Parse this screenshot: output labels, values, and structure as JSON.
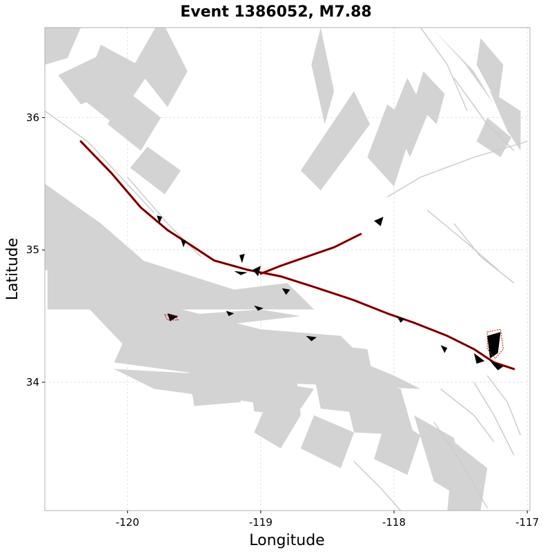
{
  "title": "Event 1386052, M7.88",
  "colors": {
    "fault_patch": "#d3d3d3",
    "fault_trace": "#cccccc",
    "rupture_outer": "#cc0000",
    "rupture_inner": "#000000",
    "slip": "#000000",
    "grid": "#d9d9d9"
  },
  "chart_data": {
    "type": "map",
    "title": "Event 1386052, M7.88",
    "xlabel": "Longitude",
    "ylabel": "Latitude",
    "xlim": [
      -120.62,
      -116.98
    ],
    "ylim": [
      33.03,
      36.68
    ],
    "x_ticks": [
      -120,
      -119,
      -118,
      -117
    ],
    "x_tick_labels": [
      "-120",
      "-119",
      "-118",
      "-117"
    ],
    "y_ticks": [
      34,
      35,
      36
    ],
    "y_tick_labels": [
      "34",
      "35",
      "36"
    ],
    "grid": true,
    "fault_patches": [
      [
        [
          -120.62,
          36.68
        ],
        [
          -120.35,
          36.68
        ],
        [
          -120.45,
          36.45
        ],
        [
          -120.62,
          36.4
        ]
      ],
      [
        [
          -120.52,
          36.32
        ],
        [
          -120.15,
          36.5
        ],
        [
          -119.98,
          36.25
        ],
        [
          -120.35,
          36.1
        ]
      ],
      [
        [
          -120.2,
          36.55
        ],
        [
          -119.83,
          36.35
        ],
        [
          -120.1,
          35.95
        ],
        [
          -120.35,
          36.15
        ]
      ],
      [
        [
          -120.0,
          36.2
        ],
        [
          -119.75,
          36.0
        ],
        [
          -119.9,
          35.75
        ],
        [
          -120.15,
          35.95
        ]
      ],
      [
        [
          -119.85,
          35.78
        ],
        [
          -119.6,
          35.6
        ],
        [
          -119.72,
          35.42
        ],
        [
          -119.98,
          35.62
        ]
      ],
      [
        [
          -119.75,
          36.75
        ],
        [
          -119.55,
          36.35
        ],
        [
          -119.7,
          36.08
        ],
        [
          -119.95,
          36.4
        ]
      ],
      [
        [
          -118.55,
          36.68
        ],
        [
          -118.45,
          36.2
        ],
        [
          -118.52,
          35.95
        ],
        [
          -118.62,
          36.4
        ]
      ],
      [
        [
          -118.3,
          36.2
        ],
        [
          -118.18,
          35.95
        ],
        [
          -118.55,
          35.45
        ],
        [
          -118.7,
          35.6
        ]
      ],
      [
        [
          -118.05,
          36.1
        ],
        [
          -117.85,
          35.95
        ],
        [
          -118.0,
          35.48
        ],
        [
          -118.2,
          35.7
        ]
      ],
      [
        [
          -117.9,
          36.3
        ],
        [
          -117.75,
          36.02
        ],
        [
          -117.88,
          35.7
        ],
        [
          -118.02,
          36.0
        ]
      ],
      [
        [
          -117.78,
          36.35
        ],
        [
          -117.62,
          36.18
        ],
        [
          -117.68,
          35.95
        ],
        [
          -117.85,
          36.12
        ]
      ],
      [
        [
          -117.72,
          36.68
        ],
        [
          -117.4,
          36.35
        ],
        [
          -117.25,
          36.1
        ],
        [
          -117.48,
          36.42
        ]
      ],
      [
        [
          -117.35,
          36.6
        ],
        [
          -117.18,
          36.4
        ],
        [
          -117.22,
          36.1
        ],
        [
          -117.38,
          36.4
        ]
      ],
      [
        [
          -117.3,
          36.0
        ],
        [
          -117.12,
          35.85
        ],
        [
          -117.2,
          35.7
        ],
        [
          -117.38,
          35.82
        ]
      ],
      [
        [
          -117.28,
          36.2
        ],
        [
          -117.05,
          36.05
        ],
        [
          -117.05,
          35.75
        ],
        [
          -117.15,
          35.9
        ]
      ],
      [
        [
          -120.62,
          35.5
        ],
        [
          -120.2,
          35.2
        ],
        [
          -119.8,
          34.85
        ],
        [
          -119.6,
          34.8
        ],
        [
          -119.55,
          34.6
        ],
        [
          -120.62,
          34.85
        ]
      ],
      [
        [
          -120.6,
          35.15
        ],
        [
          -119.2,
          34.7
        ],
        [
          -118.8,
          34.75
        ],
        [
          -118.6,
          34.55
        ],
        [
          -120.6,
          34.55
        ]
      ],
      [
        [
          -120.5,
          34.78
        ],
        [
          -119.0,
          34.4
        ],
        [
          -118.4,
          34.35
        ],
        [
          -118.2,
          34.15
        ],
        [
          -120.0,
          34.25
        ]
      ],
      [
        [
          -119.9,
          34.6
        ],
        [
          -118.6,
          34.3
        ],
        [
          -118.0,
          34.05
        ],
        [
          -117.8,
          33.95
        ],
        [
          -119.0,
          34.0
        ],
        [
          -120.1,
          34.15
        ]
      ],
      [
        [
          -120.1,
          34.1
        ],
        [
          -119.2,
          34.05
        ],
        [
          -118.6,
          33.95
        ],
        [
          -118.7,
          33.8
        ],
        [
          -119.8,
          33.95
        ]
      ],
      [
        [
          -119.55,
          34.15
        ],
        [
          -119.2,
          34.2
        ],
        [
          -119.15,
          33.85
        ],
        [
          -119.5,
          33.82
        ]
      ],
      [
        [
          -119.1,
          34.25
        ],
        [
          -118.75,
          34.2
        ],
        [
          -118.7,
          33.75
        ],
        [
          -119.05,
          33.78
        ]
      ],
      [
        [
          -118.65,
          34.3
        ],
        [
          -118.2,
          34.25
        ],
        [
          -118.1,
          33.75
        ],
        [
          -118.55,
          33.8
        ]
      ],
      [
        [
          -118.4,
          34.05
        ],
        [
          -117.95,
          33.95
        ],
        [
          -117.85,
          33.6
        ],
        [
          -118.3,
          33.62
        ]
      ],
      [
        [
          -118.05,
          33.75
        ],
        [
          -117.8,
          33.6
        ],
        [
          -117.9,
          33.3
        ],
        [
          -118.15,
          33.42
        ]
      ],
      [
        [
          -117.85,
          33.75
        ],
        [
          -117.55,
          33.58
        ],
        [
          -117.45,
          33.1
        ],
        [
          -117.7,
          33.25
        ]
      ],
      [
        [
          -117.55,
          33.55
        ],
        [
          -117.3,
          33.35
        ],
        [
          -117.35,
          33.03
        ],
        [
          -117.6,
          33.03
        ]
      ],
      [
        [
          -118.6,
          33.75
        ],
        [
          -118.3,
          33.62
        ],
        [
          -118.4,
          33.35
        ],
        [
          -118.7,
          33.5
        ]
      ],
      [
        [
          -118.95,
          33.85
        ],
        [
          -118.7,
          33.75
        ],
        [
          -118.85,
          33.5
        ],
        [
          -119.05,
          33.62
        ]
      ],
      [
        [
          -119.7,
          34.5
        ],
        [
          -119.0,
          34.55
        ],
        [
          -118.7,
          34.5
        ],
        [
          -119.4,
          34.42
        ],
        [
          -119.8,
          34.4
        ]
      ]
    ],
    "fault_traces": [
      [
        [
          -120.62,
          36.05
        ],
        [
          -120.3,
          35.82
        ],
        [
          -120.05,
          35.55
        ],
        [
          -119.8,
          35.28
        ]
      ],
      [
        [
          -120.0,
          35.55
        ],
        [
          -119.7,
          35.2
        ],
        [
          -119.45,
          34.95
        ]
      ],
      [
        [
          -118.05,
          35.4
        ],
        [
          -117.8,
          35.55
        ],
        [
          -117.4,
          35.7
        ],
        [
          -117.0,
          35.82
        ]
      ],
      [
        [
          -117.8,
          36.68
        ],
        [
          -117.6,
          36.4
        ],
        [
          -117.45,
          36.05
        ]
      ],
      [
        [
          -117.55,
          36.3
        ],
        [
          -117.3,
          35.95
        ],
        [
          -117.1,
          35.75
        ]
      ],
      [
        [
          -117.75,
          35.3
        ],
        [
          -117.45,
          35.05
        ],
        [
          -117.22,
          34.85
        ]
      ],
      [
        [
          -117.55,
          35.2
        ],
        [
          -117.35,
          34.95
        ],
        [
          -117.1,
          34.75
        ]
      ],
      [
        [
          -117.3,
          34.05
        ],
        [
          -117.15,
          33.85
        ],
        [
          -117.05,
          33.6
        ]
      ],
      [
        [
          -117.4,
          34.0
        ],
        [
          -117.25,
          33.75
        ],
        [
          -117.1,
          33.45
        ]
      ],
      [
        [
          -117.7,
          33.7
        ],
        [
          -117.5,
          33.4
        ],
        [
          -117.3,
          33.05
        ]
      ],
      [
        [
          -118.3,
          33.4
        ],
        [
          -118.1,
          33.2
        ],
        [
          -117.95,
          33.03
        ]
      ],
      [
        [
          -117.65,
          33.95
        ],
        [
          -117.4,
          33.75
        ],
        [
          -117.25,
          33.55
        ]
      ]
    ],
    "rupture_trace": [
      [
        -120.35,
        35.82
      ],
      [
        -120.12,
        35.58
      ],
      [
        -119.9,
        35.32
      ],
      [
        -119.7,
        35.15
      ],
      [
        -119.5,
        35.02
      ],
      [
        -119.35,
        34.92
      ],
      [
        -119.1,
        34.85
      ],
      [
        -118.85,
        34.8
      ],
      [
        -118.6,
        34.72
      ],
      [
        -118.3,
        34.62
      ],
      [
        -118.05,
        34.52
      ],
      [
        -117.85,
        34.45
      ],
      [
        -117.6,
        34.35
      ],
      [
        -117.4,
        34.25
      ],
      [
        -117.25,
        34.15
      ],
      [
        -117.1,
        34.1
      ]
    ],
    "rupture_branch": [
      [
        -119.0,
        34.82
      ],
      [
        -118.85,
        34.88
      ],
      [
        -118.65,
        34.95
      ],
      [
        -118.45,
        35.02
      ],
      [
        -118.25,
        35.12
      ]
    ],
    "slip_patches": [
      [
        [
          -119.78,
          35.26
        ],
        [
          -119.74,
          35.25
        ],
        [
          -119.76,
          35.2
        ]
      ],
      [
        [
          -119.6,
          35.08
        ],
        [
          -119.56,
          35.07
        ],
        [
          -119.58,
          35.02
        ]
      ],
      [
        [
          -119.16,
          34.96
        ],
        [
          -119.12,
          34.97
        ],
        [
          -119.14,
          34.9
        ]
      ],
      [
        [
          -119.06,
          34.85
        ],
        [
          -119.0,
          34.88
        ],
        [
          -119.02,
          34.8
        ]
      ],
      [
        [
          -119.7,
          34.52
        ],
        [
          -119.62,
          34.5
        ],
        [
          -119.68,
          34.46
        ]
      ],
      [
        [
          -119.26,
          34.54
        ],
        [
          -119.2,
          34.52
        ],
        [
          -119.24,
          34.5
        ]
      ],
      [
        [
          -119.05,
          34.58
        ],
        [
          -118.98,
          34.56
        ],
        [
          -119.02,
          34.54
        ]
      ],
      [
        [
          -118.84,
          34.71
        ],
        [
          -118.78,
          34.7
        ],
        [
          -118.81,
          34.66
        ]
      ],
      [
        [
          -118.66,
          34.35
        ],
        [
          -118.58,
          34.34
        ],
        [
          -118.62,
          34.31
        ]
      ],
      [
        [
          -117.98,
          34.5
        ],
        [
          -117.92,
          34.48
        ],
        [
          -117.95,
          34.45
        ]
      ],
      [
        [
          -117.3,
          34.35
        ],
        [
          -117.2,
          34.38
        ],
        [
          -117.22,
          34.22
        ],
        [
          -117.28,
          34.18
        ]
      ],
      [
        [
          -117.65,
          34.28
        ],
        [
          -117.6,
          34.26
        ],
        [
          -117.62,
          34.22
        ]
      ],
      [
        [
          -117.4,
          34.22
        ],
        [
          -117.32,
          34.16
        ],
        [
          -117.38,
          34.14
        ]
      ],
      [
        [
          -117.28,
          34.16
        ],
        [
          -117.18,
          34.12
        ],
        [
          -117.22,
          34.09
        ]
      ],
      [
        [
          -118.15,
          35.22
        ],
        [
          -118.08,
          35.25
        ],
        [
          -118.1,
          35.18
        ]
      ],
      [
        [
          -119.2,
          34.84
        ],
        [
          -119.1,
          34.83
        ],
        [
          -119.15,
          34.81
        ]
      ]
    ],
    "hypocenter_outlines": [
      [
        [
          -119.72,
          34.51
        ],
        [
          -119.64,
          34.5
        ],
        [
          -119.62,
          34.47
        ],
        [
          -119.7,
          34.47
        ]
      ],
      [
        [
          -117.3,
          34.38
        ],
        [
          -117.2,
          34.4
        ],
        [
          -117.18,
          34.25
        ],
        [
          -117.24,
          34.18
        ],
        [
          -117.3,
          34.25
        ]
      ]
    ]
  }
}
